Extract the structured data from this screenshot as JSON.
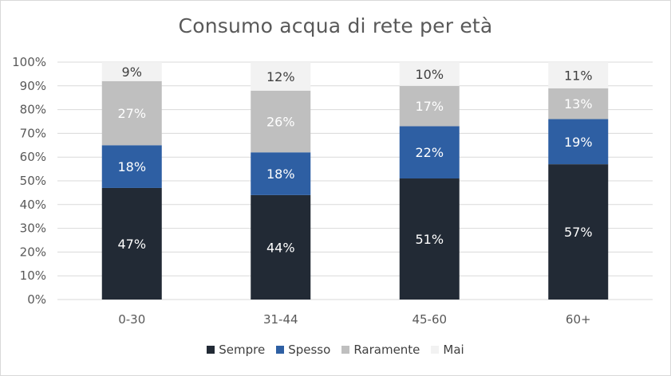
{
  "chart_data": {
    "type": "bar",
    "stacked": true,
    "percent": true,
    "title": "Consumo acqua di rete per età",
    "xlabel": "",
    "ylabel": "",
    "ylim": [
      0,
      100
    ],
    "y_ticks": [
      "0%",
      "10%",
      "20%",
      "30%",
      "40%",
      "50%",
      "60%",
      "70%",
      "80%",
      "90%",
      "100%"
    ],
    "categories": [
      "0-30",
      "31-44",
      "45-60",
      "60+"
    ],
    "series": [
      {
        "name": "Sempre",
        "values": [
          47,
          44,
          51,
          57
        ],
        "labels": [
          "47%",
          "44%",
          "51%",
          "57%"
        ],
        "color": "#222a35",
        "label_color": "#ffffff"
      },
      {
        "name": "Spesso",
        "values": [
          18,
          18,
          22,
          19
        ],
        "labels": [
          "18%",
          "18%",
          "22%",
          "19%"
        ],
        "color": "#2e5fa3",
        "label_color": "#ffffff"
      },
      {
        "name": "Raramente",
        "values": [
          27,
          26,
          17,
          13
        ],
        "labels": [
          "27%",
          "26%",
          "17%",
          "13%"
        ],
        "color": "#bfbfbf",
        "label_color": "#ffffff"
      },
      {
        "name": "Mai",
        "values": [
          9,
          12,
          10,
          11
        ],
        "labels": [
          "9%",
          "12%",
          "10%",
          "11%"
        ],
        "color": "#f2f2f2",
        "label_color": "#404040"
      }
    ],
    "grid": true,
    "legend_position": "bottom"
  }
}
